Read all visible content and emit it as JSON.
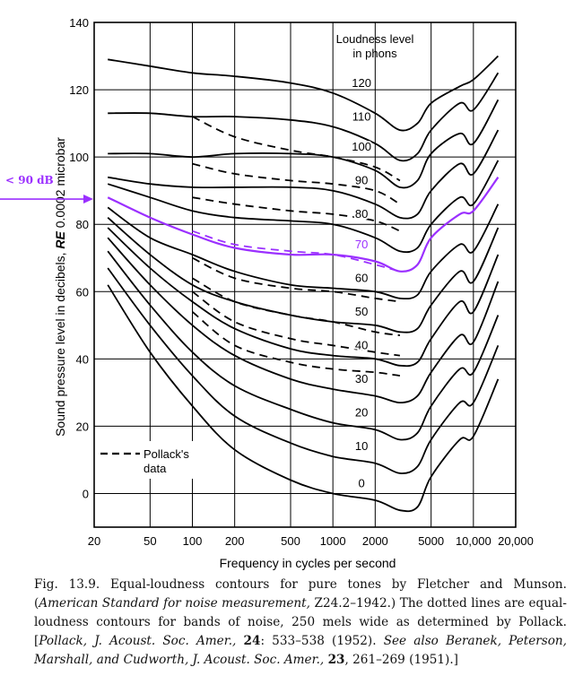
{
  "chart_data": {
    "type": "line",
    "title": "",
    "xlabel": "Frequency in cycles per second",
    "ylabel": "Sound pressure level in decibels, RE 0.0002 microbar",
    "ylabel_parts": [
      "Sound pressure level in decibels, ",
      "RE",
      " 0.0002 microbar"
    ],
    "xscale": "log",
    "xlim": [
      20,
      20000
    ],
    "ylim": [
      -10,
      140
    ],
    "x_ticks": [
      20,
      50,
      100,
      200,
      500,
      1000,
      2000,
      5000,
      10000,
      20000
    ],
    "x_tick_labels": [
      "20",
      "50",
      "100",
      "200",
      "500",
      "1000",
      "2000",
      "5000",
      "10,000",
      "20,000"
    ],
    "y_ticks": [
      0,
      20,
      40,
      60,
      80,
      100,
      120,
      140
    ],
    "y_tick_labels": [
      "0",
      "20",
      "40",
      "60",
      "80",
      "100",
      "120",
      "140"
    ],
    "grid": true,
    "legend": {
      "header": [
        "Loudness level",
        "in phons"
      ],
      "pollack_label": [
        "Pollack's",
        "data"
      ],
      "pollack_position": "bottom-left"
    },
    "highlight_color": "#9b30ff",
    "annotation": {
      "text": "< 90 dB",
      "points_to_y": 87.5
    },
    "series": [
      {
        "name": "120",
        "x": [
          25,
          50,
          100,
          200,
          500,
          1000,
          2000,
          3000,
          4000,
          5000,
          8000,
          10000,
          15000
        ],
        "y": [
          129,
          127,
          125,
          124,
          122,
          119,
          113,
          108,
          110,
          116,
          121,
          123,
          130
        ]
      },
      {
        "name": "110",
        "x": [
          25,
          50,
          100,
          200,
          500,
          1000,
          2000,
          3000,
          4000,
          5000,
          8000,
          10000,
          15000
        ],
        "y": [
          113,
          113,
          112,
          112,
          111,
          109,
          104,
          99,
          101,
          108,
          116,
          114,
          125
        ]
      },
      {
        "name": "100",
        "x": [
          25,
          50,
          100,
          200,
          500,
          1000,
          2000,
          3000,
          4000,
          5000,
          8000,
          10000,
          15000
        ],
        "y": [
          101,
          101,
          100,
          101,
          101,
          100,
          96,
          91,
          93,
          101,
          107,
          104,
          117
        ]
      },
      {
        "name": "90",
        "x": [
          25,
          50,
          100,
          200,
          500,
          1000,
          2000,
          3000,
          4000,
          5000,
          8000,
          10000,
          15000
        ],
        "y": [
          94,
          92,
          91,
          91,
          91,
          90,
          86,
          82,
          83,
          90,
          98,
          95,
          108
        ]
      },
      {
        "name": "80",
        "x": [
          25,
          50,
          100,
          200,
          500,
          1000,
          2000,
          3000,
          4000,
          5000,
          8000,
          10000,
          15000
        ],
        "y": [
          92,
          88,
          84,
          82,
          81,
          80,
          76,
          72,
          73,
          80,
          88,
          86,
          99
        ]
      },
      {
        "name": "70",
        "highlight": true,
        "x": [
          25,
          50,
          100,
          200,
          500,
          1000,
          2000,
          3000,
          4000,
          5000,
          8000,
          10000,
          15000
        ],
        "y": [
          88,
          82,
          77,
          73,
          71,
          71,
          69,
          66,
          68,
          76,
          83,
          84,
          94
        ]
      },
      {
        "name": "60",
        "x": [
          25,
          50,
          100,
          200,
          500,
          1000,
          2000,
          3000,
          4000,
          5000,
          8000,
          10000,
          15000
        ],
        "y": [
          85,
          76,
          71,
          66,
          62,
          61,
          60,
          58,
          59,
          66,
          74,
          72,
          86
        ]
      },
      {
        "name": "50",
        "x": [
          25,
          50,
          100,
          200,
          500,
          1000,
          2000,
          3000,
          4000,
          5000,
          8000,
          10000,
          15000
        ],
        "y": [
          82,
          71,
          62,
          57,
          53,
          51,
          50,
          48,
          49,
          56,
          66,
          63,
          79
        ]
      },
      {
        "name": "40",
        "x": [
          25,
          50,
          100,
          200,
          500,
          1000,
          2000,
          3000,
          4000,
          5000,
          8000,
          10000,
          15000
        ],
        "y": [
          79,
          67,
          57,
          49,
          43,
          41,
          40,
          38,
          39,
          46,
          57,
          54,
          71
        ]
      },
      {
        "name": "30",
        "x": [
          25,
          50,
          100,
          200,
          500,
          1000,
          2000,
          3000,
          4000,
          5000,
          8000,
          10000,
          15000
        ],
        "y": [
          76,
          62,
          50,
          41,
          34,
          31,
          29,
          27,
          29,
          36,
          47,
          45,
          63
        ]
      },
      {
        "name": "20",
        "x": [
          25,
          50,
          100,
          200,
          500,
          1000,
          2000,
          3000,
          4000,
          5000,
          8000,
          10000,
          15000
        ],
        "y": [
          72,
          56,
          42,
          32,
          25,
          21,
          19,
          16,
          18,
          26,
          37,
          36,
          53
        ]
      },
      {
        "name": "10",
        "x": [
          25,
          50,
          100,
          200,
          500,
          1000,
          2000,
          3000,
          4000,
          5000,
          8000,
          10000,
          15000
        ],
        "y": [
          67,
          50,
          35,
          23,
          15,
          11,
          9,
          6,
          8,
          16,
          27,
          27,
          44
        ]
      },
      {
        "name": "0",
        "x": [
          25,
          50,
          100,
          200,
          500,
          1000,
          2000,
          3000,
          4000,
          5000,
          8000,
          10000,
          15000
        ],
        "y": [
          62,
          42,
          26,
          13,
          4,
          0,
          -2,
          -5,
          -4,
          5,
          16,
          17,
          34
        ]
      }
    ],
    "pollack_series": [
      {
        "name": "110",
        "x": [
          100,
          200,
          500,
          1000,
          2000,
          3000
        ],
        "y": [
          112,
          106,
          102,
          100,
          97,
          93
        ]
      },
      {
        "name": "100",
        "x": [
          100,
          200,
          500,
          1000,
          2000,
          3000
        ],
        "y": [
          98,
          95,
          93,
          92,
          90,
          86
        ]
      },
      {
        "name": "90",
        "x": [
          100,
          200,
          500,
          1000,
          2000,
          3000
        ],
        "y": [
          88,
          86,
          84,
          83,
          81,
          78
        ]
      },
      {
        "name": "70",
        "highlight": true,
        "x": [
          100,
          200,
          500,
          1000,
          2000,
          3000
        ],
        "y": [
          78,
          74,
          72,
          71,
          68,
          66
        ]
      },
      {
        "name": "60",
        "x": [
          100,
          200,
          500,
          1000,
          2000,
          3000
        ],
        "y": [
          70,
          64,
          61,
          60,
          58,
          57
        ]
      },
      {
        "name": "50",
        "x": [
          100,
          200,
          500,
          1000,
          2000,
          3000
        ],
        "y": [
          64,
          57,
          53,
          51,
          48,
          47
        ]
      },
      {
        "name": "40",
        "x": [
          100,
          200,
          500,
          1000,
          2000,
          3000
        ],
        "y": [
          60,
          51,
          46,
          44,
          42,
          41
        ]
      },
      {
        "name": "30",
        "x": [
          100,
          200,
          500,
          1000,
          2000,
          3000
        ],
        "y": [
          54,
          44,
          39,
          37,
          36,
          35
        ]
      }
    ]
  },
  "caption": {
    "fig": "Fig. 13.9.",
    "t1": " Equal-loudness contours for pure tones by Fletcher and Munson. (",
    "i1": "American Standard for noise measurement,",
    "t2": " Z24.2–1942.) The dotted lines are equal-loudness contours for bands of noise, 250 mels wide as determined by Pollack. [",
    "i2": "Pollack, J. Acoust. Soc. Amer.,",
    "t3": " ",
    "b1": "24",
    "t4": ": 533–538 (1952). ",
    "i3": "See also Beranek, Peterson, Marshall, and Cudworth, J. Acoust. Soc. Amer.,",
    "t5": " ",
    "b2": "23",
    "t6": ", 261–269 (1951).]"
  }
}
